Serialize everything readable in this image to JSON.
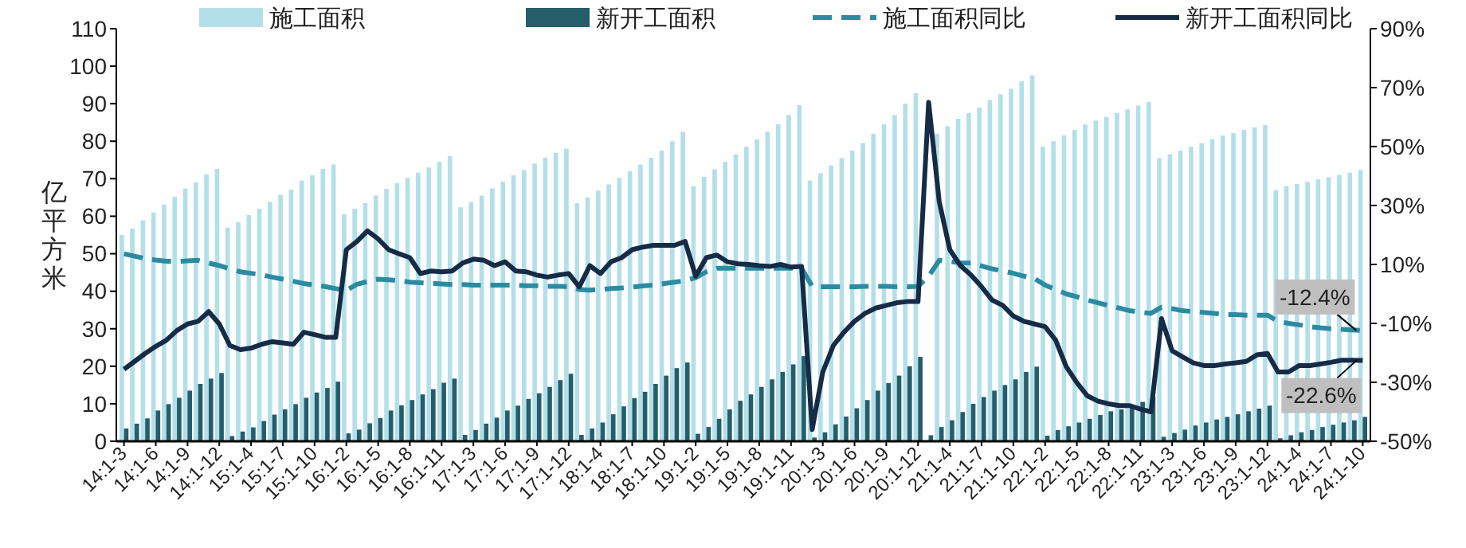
{
  "chart_data": {
    "type": "bar",
    "ylabel": "亿平方米",
    "categories": [
      "14:1-3",
      null,
      null,
      "14:1-6",
      null,
      null,
      "14:1-9",
      null,
      null,
      "14:1-12",
      null,
      null,
      "15:1-4",
      null,
      null,
      "15:1-7",
      null,
      null,
      "15:1-10",
      null,
      null,
      "16:1-2",
      null,
      null,
      "16:1-5",
      null,
      null,
      "16:1-8",
      null,
      null,
      "16:1-11",
      null,
      null,
      "17:1-3",
      null,
      null,
      "17:1-6",
      null,
      null,
      "17:1-9",
      null,
      null,
      "17:1-12",
      null,
      null,
      "18:1-4",
      null,
      null,
      "18:1-7",
      null,
      null,
      "18:1-10",
      null,
      null,
      "19:1-2",
      null,
      null,
      "19:1-5",
      null,
      null,
      "19:1-8",
      null,
      null,
      "19:1-11",
      null,
      null,
      "20:1-3",
      null,
      null,
      "20:1-6",
      null,
      null,
      "20:1-9",
      null,
      null,
      "20:1-12",
      null,
      null,
      "21:1-4",
      null,
      null,
      "21:1-7",
      null,
      null,
      "21:1-10",
      null,
      null,
      "22:1-2",
      null,
      null,
      "22:1-5",
      null,
      null,
      "22:1-8",
      null,
      null,
      "22:1-11",
      null,
      null,
      "23:1-3",
      null,
      null,
      "23:1-6",
      null,
      null,
      "23:1-9",
      null,
      null,
      "23:1-12",
      null,
      null,
      "24:1-4",
      null,
      null,
      "24:1-7",
      null,
      null,
      "24:1-10"
    ],
    "series": [
      {
        "name": "施工面积",
        "color": "#b4dfe9",
        "values": [
          55,
          56.7,
          58.9,
          61,
          63.1,
          65.2,
          67.4,
          69,
          71.2,
          72.6,
          57,
          58.4,
          60.3,
          62,
          63.8,
          65.7,
          67.1,
          69.5,
          70.9,
          72.6,
          73.8,
          60.5,
          62,
          63.5,
          65.5,
          67.3,
          68.8,
          70.2,
          71.6,
          73,
          74.5,
          76,
          62.4,
          63.8,
          65.5,
          67.4,
          69.2,
          70.9,
          72.3,
          74,
          75.6,
          76.9,
          78,
          63.5,
          65,
          66.8,
          68.5,
          70.2,
          72,
          73.8,
          75.6,
          77.5,
          80,
          82.5,
          68,
          70.5,
          72.5,
          74.5,
          76.5,
          78.5,
          80.5,
          82.5,
          84.5,
          87,
          89.6,
          69.5,
          71.5,
          73.5,
          75.5,
          77.5,
          79.5,
          82,
          84.5,
          87,
          90,
          92.8,
          null,
          82,
          84,
          86,
          87.5,
          89,
          91,
          92.5,
          94,
          96,
          97.5,
          78.5,
          80,
          81.5,
          83,
          84.5,
          85.5,
          86.5,
          87.5,
          88.5,
          89.5,
          90.5,
          75.5,
          76.5,
          77.5,
          78.5,
          79.5,
          80.5,
          81.5,
          82.2,
          83,
          83.7,
          84.3,
          67,
          68,
          68.6,
          69.2,
          69.8,
          70.4,
          71,
          71.6,
          72.3
        ]
      },
      {
        "name": "新开工面积",
        "color": "#245e6b",
        "values": [
          3.4,
          4.7,
          6.1,
          8.2,
          9.9,
          11.6,
          13.5,
          15.3,
          16.7,
          18.2,
          1.4,
          2.6,
          3.7,
          5.4,
          7.1,
          8.5,
          9.9,
          11.6,
          13,
          14.2,
          15.9,
          2.1,
          3.1,
          4.8,
          6.2,
          8.2,
          9.6,
          11,
          12.5,
          13.9,
          15.6,
          16.7,
          1.7,
          3,
          4.7,
          6.3,
          8.2,
          9.5,
          11.3,
          12.8,
          14.5,
          16.3,
          18,
          1.7,
          3.4,
          5,
          7.2,
          9.3,
          11.5,
          13.2,
          15.3,
          17.5,
          19.5,
          21,
          2,
          3.8,
          6,
          8.5,
          10.8,
          12.5,
          14.5,
          16.5,
          18.5,
          20.5,
          22.7,
          1,
          2.4,
          4.5,
          6.6,
          8.8,
          11,
          13.5,
          15.5,
          17.5,
          20,
          22.5,
          1.6,
          3.8,
          5.6,
          7.8,
          10,
          11.8,
          13.5,
          15,
          16.5,
          18.5,
          19.9,
          1.5,
          3,
          4,
          5,
          6,
          7,
          8,
          8.5,
          9.5,
          10.5,
          12,
          1.2,
          2.2,
          3.1,
          4.2,
          5,
          5.8,
          6.5,
          7.2,
          8,
          8.7,
          9.5,
          0.8,
          1.6,
          2.4,
          3,
          3.8,
          4.4,
          5,
          5.6,
          6.5
        ]
      },
      {
        "name": "施工面积同比",
        "type": "line",
        "axis": "y2",
        "line_style": "dashed",
        "color": "#2b8ba1",
        "values": [
          13.6,
          12.8,
          12,
          11.5,
          11.1,
          11,
          11.2,
          11.4,
          10.5,
          9.6,
          8.5,
          7.5,
          7,
          6.5,
          5.7,
          5,
          4.3,
          3.5,
          3,
          2.5,
          1.8,
          1.2,
          3.3,
          4.2,
          5,
          4.8,
          4.5,
          4,
          3.8,
          3.6,
          3.4,
          3.2,
          3.2,
          3,
          3,
          3,
          3,
          3,
          2.8,
          2.8,
          2.6,
          2.6,
          2.5,
          1.5,
          1.3,
          1.5,
          1.8,
          2,
          2.3,
          2.7,
          3,
          3.5,
          4,
          4.5,
          5.5,
          7.5,
          8.7,
          8.7,
          8.7,
          8.7,
          8.7,
          8.7,
          8.7,
          8.7,
          8.7,
          2.6,
          2.4,
          2.4,
          2.4,
          2.4,
          2.6,
          2.6,
          2.6,
          2.4,
          2.4,
          2.6,
          6,
          11.4,
          11,
          10.5,
          10.5,
          9.5,
          8.5,
          7.8,
          7,
          6,
          5.2,
          3,
          1.5,
          0,
          -1,
          -2.1,
          -3,
          -4,
          -4.8,
          -5.7,
          -6.2,
          -6.6,
          -4.5,
          -5,
          -5.7,
          -6,
          -6.3,
          -6.6,
          -7,
          -7,
          -7.2,
          -7.2,
          -7.2,
          -9.3,
          -10,
          -10.5,
          -11.1,
          -11.5,
          -11.8,
          -12,
          -12.2,
          -12.4
        ]
      },
      {
        "name": "新开工面积同比",
        "type": "line",
        "axis": "y2",
        "line_style": "solid",
        "color": "#152b46",
        "values": [
          -25.6,
          -22.9,
          -20.2,
          -17.8,
          -15.7,
          -12.4,
          -10.2,
          -9.3,
          -6,
          -10.2,
          -17.5,
          -18.9,
          -18.4,
          -17.1,
          -16.2,
          -16.6,
          -17.1,
          -13,
          -13.8,
          -14.7,
          -14.7,
          15,
          17.8,
          21.4,
          18.7,
          15,
          13.6,
          12.3,
          6.9,
          7.8,
          7.5,
          7.8,
          10.5,
          11.8,
          11.4,
          9.6,
          10.9,
          7.8,
          7.5,
          6.4,
          5.7,
          6.4,
          6.9,
          2.4,
          9.6,
          6.9,
          10.9,
          12.3,
          15,
          15.9,
          16.5,
          16.5,
          16.5,
          17.8,
          6,
          12.3,
          13.2,
          10.9,
          10.2,
          10,
          9.6,
          9.3,
          10,
          9.1,
          9.3,
          -46,
          -26.5,
          -17.5,
          -13,
          -9.3,
          -6.6,
          -4.8,
          -3.9,
          -3,
          -2.6,
          -2.6,
          65,
          31.3,
          15,
          9.6,
          6.4,
          2.4,
          -2.1,
          -3.9,
          -7.5,
          -9.3,
          -10.2,
          -11.1,
          -15.7,
          -24.7,
          -30.1,
          -34.6,
          -36.4,
          -37.3,
          -37.9,
          -37.9,
          -39.1,
          -40,
          -8.4,
          -19.3,
          -21.4,
          -23.4,
          -24.3,
          -24.3,
          -23.8,
          -23.4,
          -22.9,
          -20.7,
          -20.2,
          -26.5,
          -26.5,
          -24.3,
          -24.3,
          -23.8,
          -23.2,
          -22.5,
          -22.5,
          -22.6
        ]
      }
    ],
    "ylim": [
      0,
      110
    ],
    "yticks": [
      0,
      10,
      20,
      30,
      40,
      50,
      60,
      70,
      80,
      90,
      100,
      110
    ],
    "y2lim": [
      -50,
      90
    ],
    "y2ticks": [
      {
        "value": -50,
        "label": "-50%"
      },
      {
        "value": -30,
        "label": "-30%"
      },
      {
        "value": -10,
        "label": "-10%"
      },
      {
        "value": 10,
        "label": "10%"
      },
      {
        "value": 30,
        "label": "30%"
      },
      {
        "value": 50,
        "label": "50%"
      },
      {
        "value": 70,
        "label": "70%"
      },
      {
        "value": 90,
        "label": "90%"
      }
    ],
    "annotations": [
      "-12.4%",
      "-22.6%"
    ],
    "legend": "top",
    "grid": false
  }
}
